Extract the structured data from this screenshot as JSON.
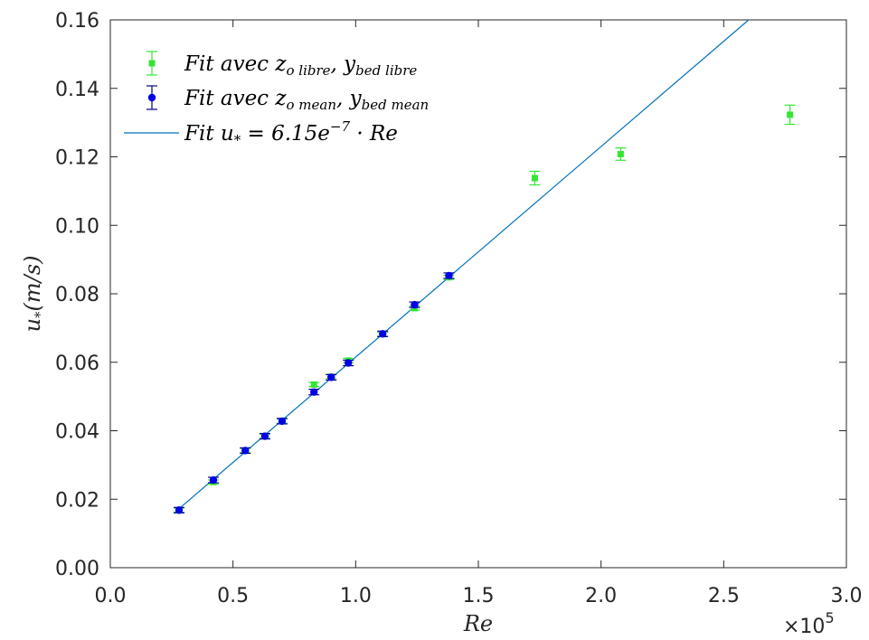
{
  "chart_data": {
    "type": "scatter",
    "xlabel": "Re",
    "ylabel": "u*(m/s)",
    "x_multiplier_label": "×10",
    "x_multiplier_exp": "5",
    "xlim": [
      0,
      3.0
    ],
    "ylim": [
      0,
      0.16
    ],
    "x_ticks": [
      "0.0",
      "0.5",
      "1.0",
      "1.5",
      "2.0",
      "2.5",
      "3.0"
    ],
    "x_tick_values": [
      0,
      0.5,
      1.0,
      1.5,
      2.0,
      2.5,
      3.0
    ],
    "y_ticks": [
      "0.00",
      "0.02",
      "0.04",
      "0.06",
      "0.08",
      "0.10",
      "0.12",
      "0.14",
      "0.16"
    ],
    "y_tick_values": [
      0,
      0.02,
      0.04,
      0.06,
      0.08,
      0.1,
      0.12,
      0.14,
      0.16
    ],
    "grid": false,
    "legend_position": "top-left",
    "series": [
      {
        "name": "Fit avec zo libre, ybed libre",
        "color": "#33e633",
        "marker": "square",
        "x": [
          0.28,
          0.42,
          0.55,
          0.63,
          0.7,
          0.83,
          0.9,
          0.97,
          1.11,
          1.24,
          1.38,
          1.73,
          2.08,
          2.77
        ],
        "y": [
          0.0168,
          0.025,
          0.0342,
          0.0384,
          0.0428,
          0.0535,
          0.0558,
          0.0605,
          0.0682,
          0.0758,
          0.0848,
          0.1138,
          0.1208,
          0.1323
        ],
        "err": [
          0.0006,
          0.0006,
          0.0006,
          0.0006,
          0.0006,
          0.0006,
          0.0006,
          0.0006,
          0.0006,
          0.0006,
          0.0006,
          0.002,
          0.0018,
          0.0028
        ]
      },
      {
        "name": "Fit avec zo mean, ybed mean",
        "color": "#0000e6",
        "marker": "circle",
        "x": [
          0.28,
          0.42,
          0.55,
          0.63,
          0.7,
          0.83,
          0.9,
          0.97,
          1.11,
          1.24,
          1.38
        ],
        "y": [
          0.0168,
          0.0256,
          0.0342,
          0.0384,
          0.0428,
          0.0513,
          0.0556,
          0.0598,
          0.0683,
          0.0768,
          0.0853
        ],
        "err": [
          0.0008,
          0.0008,
          0.0008,
          0.0008,
          0.0008,
          0.0008,
          0.0008,
          0.0008,
          0.0008,
          0.0008,
          0.0008
        ]
      },
      {
        "name": "Fit u* = 6.15e-7 · Re",
        "type": "line",
        "color": "#0072bd",
        "slope": 0.0615,
        "x_range": [
          0.28,
          3.0
        ]
      }
    ],
    "legend": [
      {
        "pre": "Fit avec z",
        "s1": "o libre",
        "mid": ", y",
        "s2": "bed libre"
      },
      {
        "pre": "Fit avec z",
        "s1": "o mean",
        "mid": ", y",
        "s2": "bed mean"
      },
      {
        "pre": "Fit u",
        "s1": "*",
        "mid": " = 6.15e",
        "sup": "−7",
        "post": " · Re"
      }
    ]
  }
}
